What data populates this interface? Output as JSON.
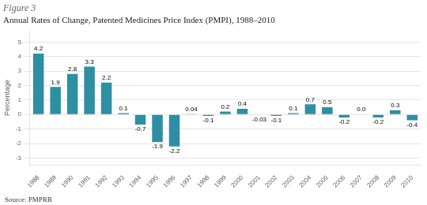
{
  "chart_data": {
    "type": "bar",
    "title": "Figure 3",
    "subtitle": "Annual Rates of Change, Patented Medicines Price Index (PMPI), 1988–2010",
    "ylabel": "Percentage",
    "annotations": [
      "Source: PMPRB"
    ],
    "categories": [
      "1988",
      "1989",
      "1990",
      "1991",
      "1992",
      "1993",
      "1994",
      "1995",
      "1996",
      "1997",
      "1998",
      "1999",
      "2000",
      "2001",
      "2002",
      "2003",
      "2004",
      "2005",
      "2006",
      "2007",
      "2008",
      "2009",
      "2010"
    ],
    "values": [
      4.2,
      1.9,
      2.8,
      3.3,
      2.2,
      0.1,
      -0.7,
      -1.9,
      -2.2,
      0.04,
      -0.1,
      0.2,
      0.4,
      -0.03,
      -0.1,
      0.1,
      0.7,
      0.5,
      -0.2,
      0.0,
      -0.2,
      0.3,
      -0.4
    ],
    "value_labels": [
      "4.2",
      "1.9",
      "2.8",
      "3.3",
      "2.2",
      "0.1",
      "-0.7",
      "-1.9",
      "-2.2",
      "0.04",
      "-0.1",
      "0.2",
      "0.4",
      "-0.03",
      "-0.1",
      "0.1",
      "0.7",
      "0.5",
      "-0.2",
      "0.0",
      "-0.2",
      "0.3",
      "-0.4"
    ],
    "data_labels": true,
    "color": "#2e8fa3",
    "ylim": [
      -3.5,
      5.8
    ],
    "yticks": [
      -3,
      -2,
      -1,
      0,
      1,
      2,
      3,
      4,
      5
    ],
    "grid": true
  }
}
